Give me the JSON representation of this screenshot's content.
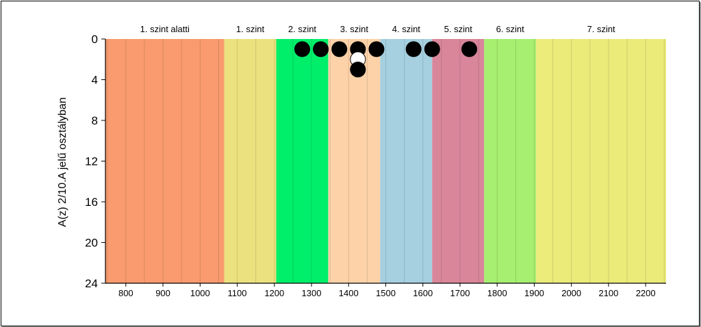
{
  "chart_data": {
    "type": "scatter",
    "title": "",
    "ylabel": "A(z) 2/10.A jelű osztályban",
    "xlabel": "",
    "xlim": [
      745,
      2255
    ],
    "ylim": [
      0,
      24
    ],
    "y_inverted": true,
    "x_ticks": [
      "800",
      "900",
      "1000",
      "1100",
      "1200",
      "1300",
      "1400",
      "1500",
      "1600",
      "1700",
      "1800",
      "1900",
      "2000",
      "2100",
      "2200"
    ],
    "y_ticks": [
      "0",
      "4",
      "8",
      "12",
      "16",
      "20",
      "24"
    ],
    "vertical_gridlines_every": 50,
    "bands": [
      {
        "label": "1. szint alatti",
        "from": 745,
        "to": 1065,
        "color": "#f99b6e"
      },
      {
        "label": "1. szint",
        "from": 1065,
        "to": 1205,
        "color": "#ebe27f"
      },
      {
        "label": "2. szint",
        "from": 1205,
        "to": 1345,
        "color": "#00ef6a"
      },
      {
        "label": "3. szint",
        "from": 1345,
        "to": 1485,
        "color": "#fdd2a9"
      },
      {
        "label": "4. szint",
        "from": 1485,
        "to": 1625,
        "color": "#a6d0e0"
      },
      {
        "label": "5. szint",
        "from": 1625,
        "to": 1765,
        "color": "#d9869a"
      },
      {
        "label": "6. szint",
        "from": 1765,
        "to": 1905,
        "color": "#a6ef70"
      },
      {
        "label": "7. szint",
        "from": 1905,
        "to": 2255,
        "color": "#ebeb7a"
      }
    ],
    "points": [
      {
        "x": 1275,
        "y": 1,
        "fill": "#000000"
      },
      {
        "x": 1325,
        "y": 1,
        "fill": "#000000"
      },
      {
        "x": 1375,
        "y": 1,
        "fill": "#000000"
      },
      {
        "x": 1425,
        "y": 1,
        "fill": "#000000"
      },
      {
        "x": 1475,
        "y": 1,
        "fill": "#000000"
      },
      {
        "x": 1575,
        "y": 1,
        "fill": "#000000"
      },
      {
        "x": 1625,
        "y": 1,
        "fill": "#000000"
      },
      {
        "x": 1725,
        "y": 1,
        "fill": "#000000"
      },
      {
        "x": 1425,
        "y": 2,
        "fill": "#ffffff"
      },
      {
        "x": 1425,
        "y": 3,
        "fill": "#000000"
      }
    ]
  }
}
